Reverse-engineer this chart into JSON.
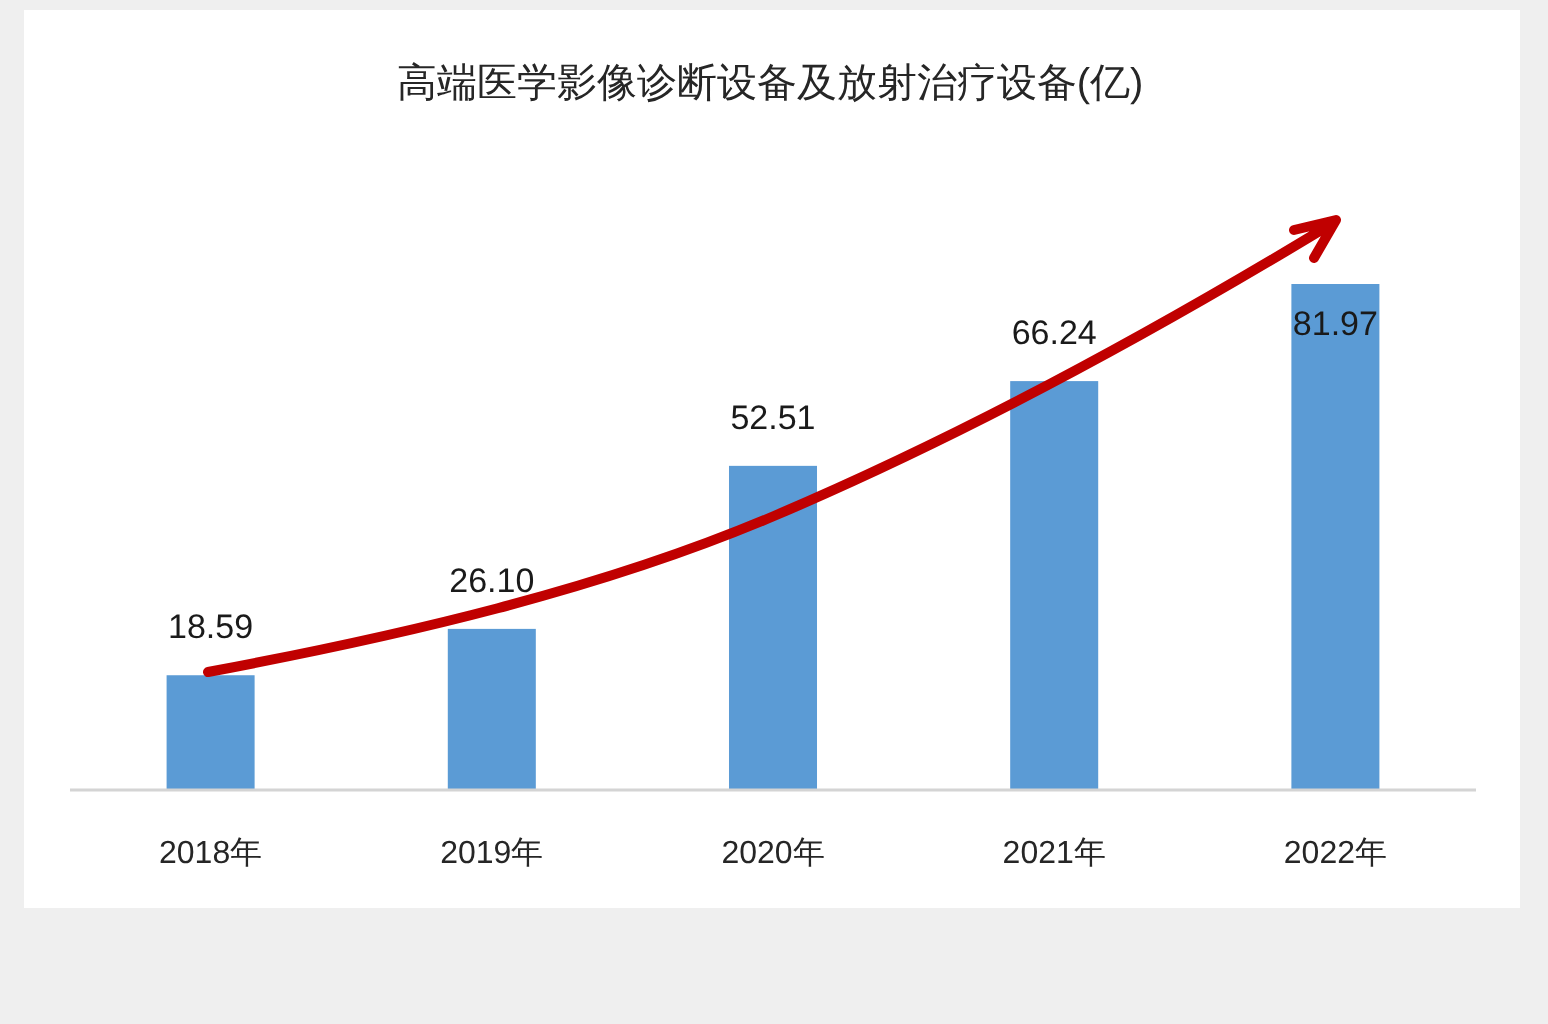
{
  "chart_data": {
    "type": "bar",
    "title": "高端医学影像诊断设备及放射治疗设备(亿)",
    "categories": [
      "2018年",
      "2019年",
      "2020年",
      "2021年",
      "2022年"
    ],
    "values": [
      18.59,
      26.1,
      52.51,
      66.24,
      81.97
    ],
    "value_labels": [
      "18.59",
      "26.10",
      "52.51",
      "66.24",
      "81.97"
    ],
    "color": "#5b9bd5",
    "tick_labels": "x"
  }
}
